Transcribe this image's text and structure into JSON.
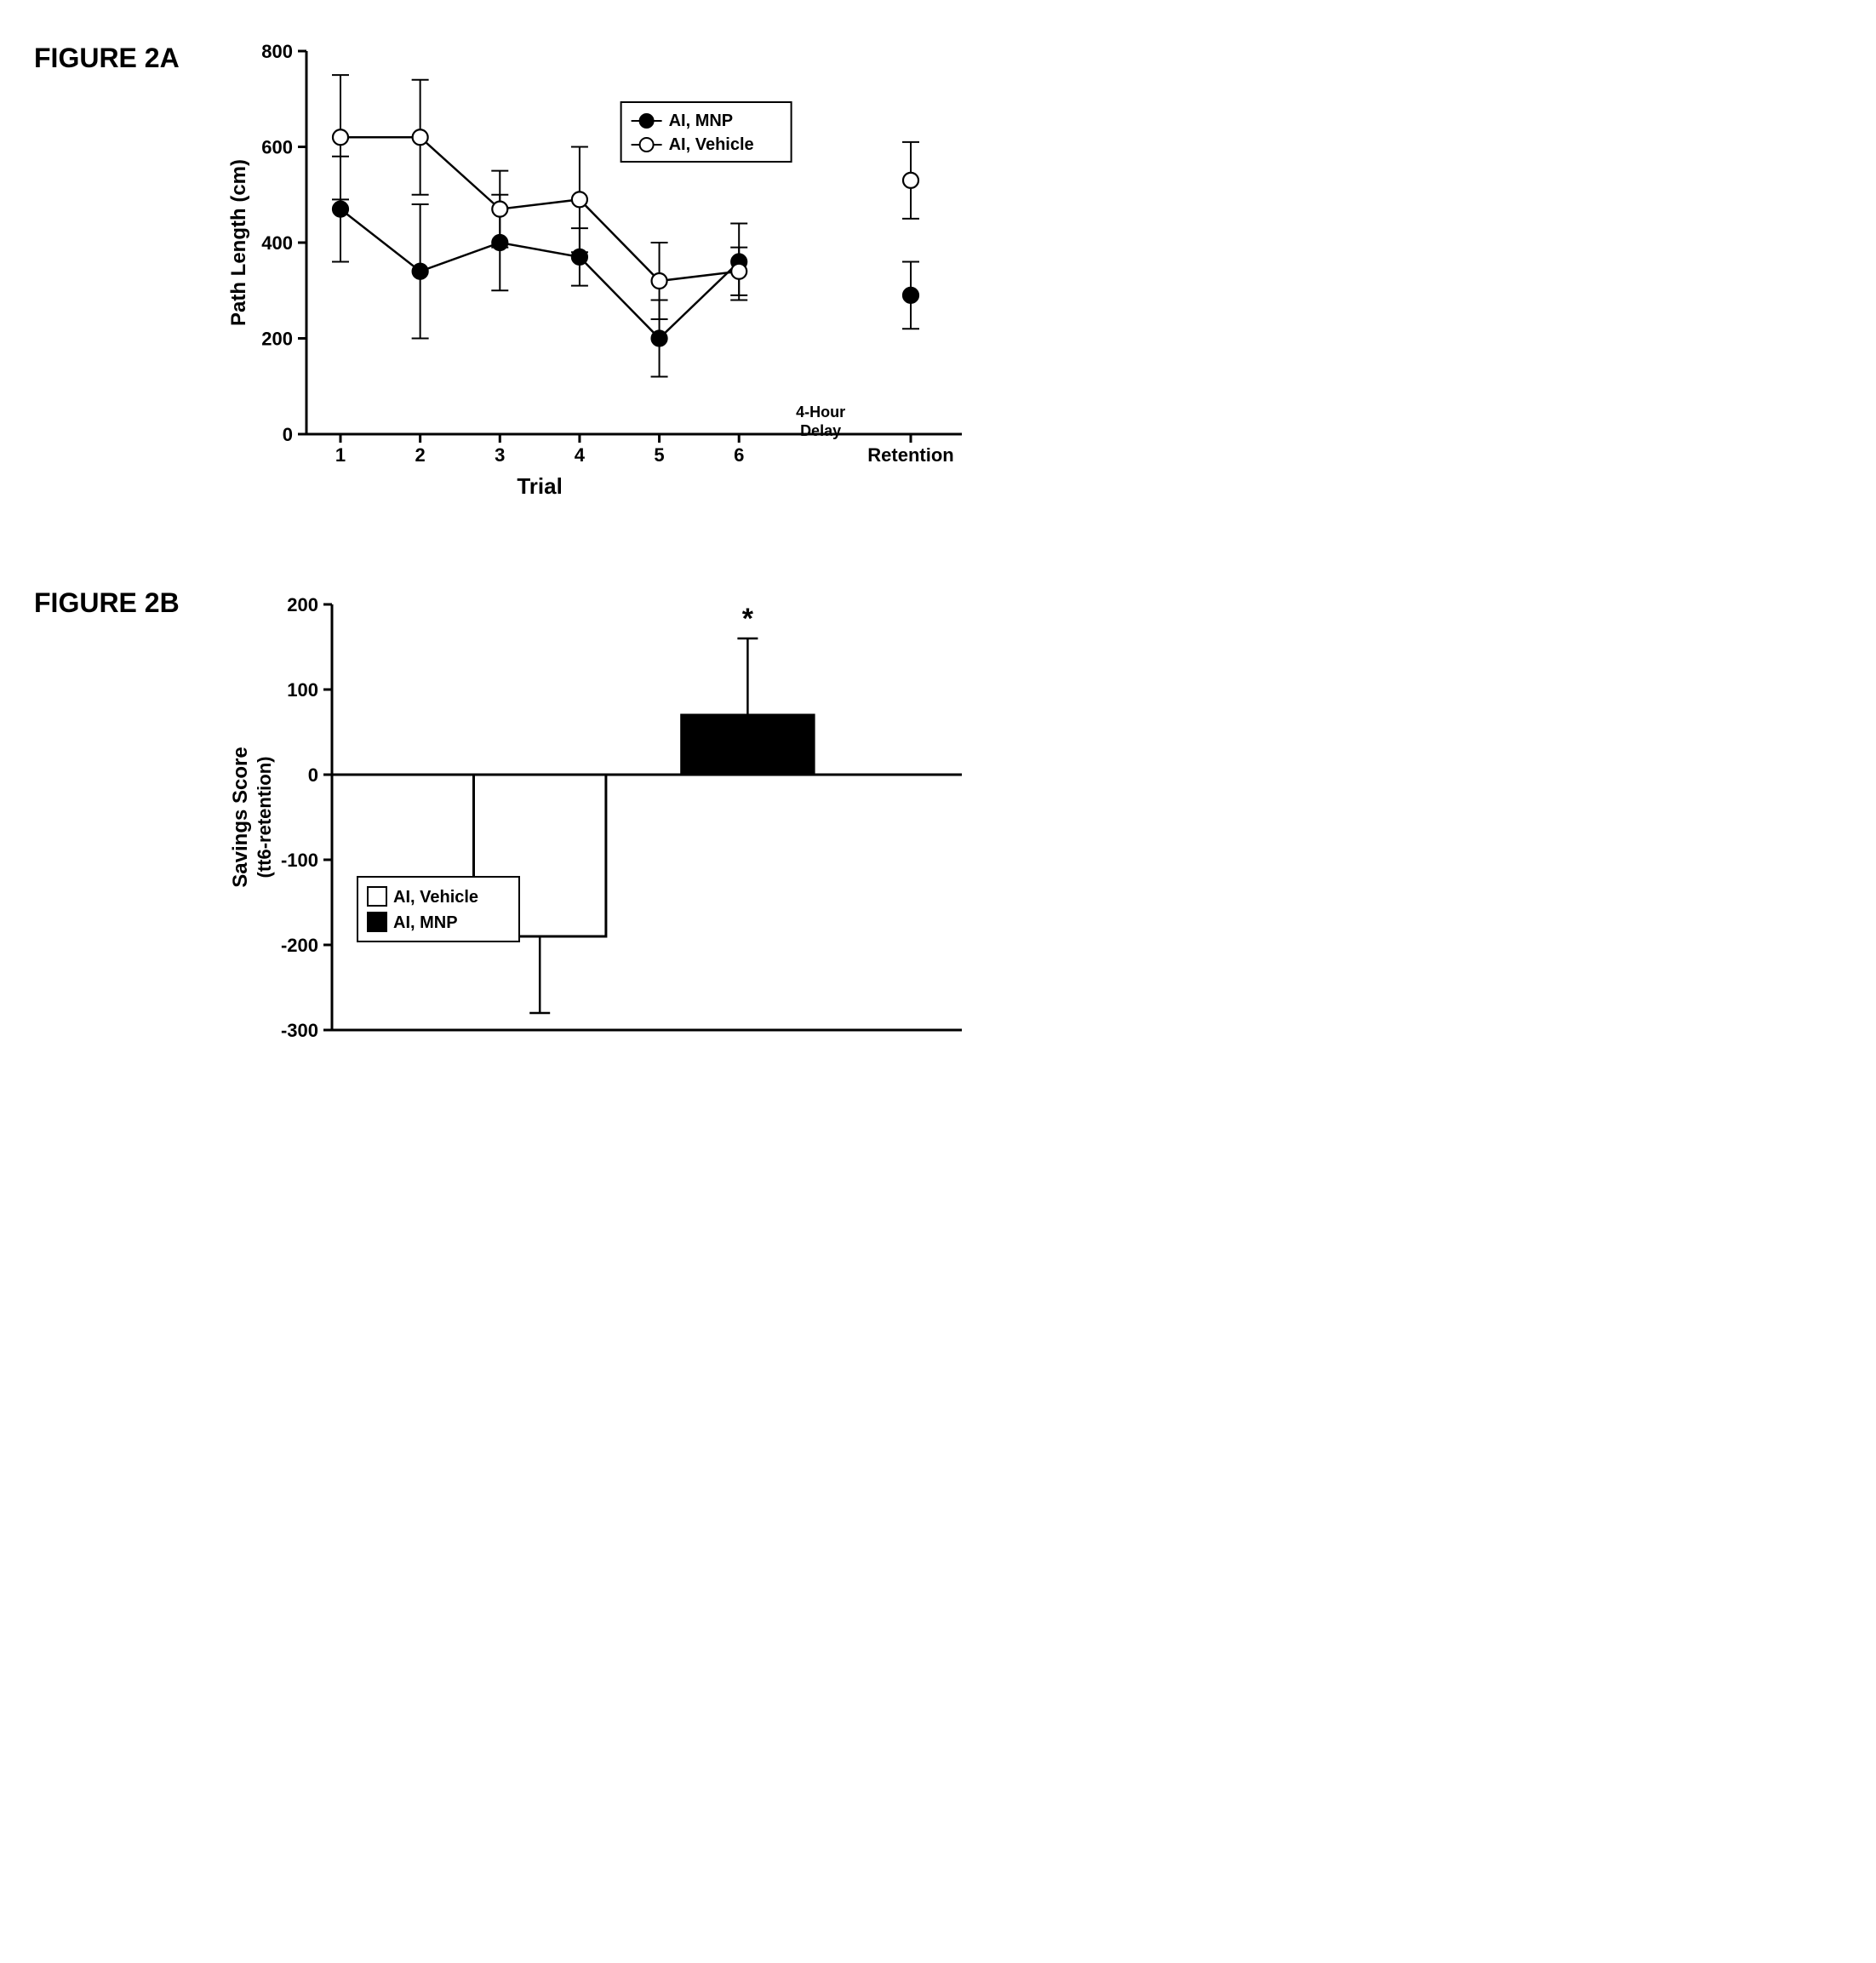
{
  "figureA": {
    "label": "FIGURE 2A",
    "type": "line",
    "ylabel": "Path Length (cm)",
    "xlabel": "Trial",
    "ylim": [
      0,
      800
    ],
    "ytick_step": 200,
    "trials": [
      "1",
      "2",
      "3",
      "4",
      "5",
      "6"
    ],
    "retention_label": "Retention",
    "delay_label": "4-Hour\nDelay",
    "series": [
      {
        "name": "AI, MNP",
        "marker": "filled",
        "values": [
          470,
          340,
          400,
          370,
          200,
          360
        ],
        "errs": [
          110,
          140,
          100,
          60,
          80,
          80
        ],
        "retention": 290,
        "retention_err": 70
      },
      {
        "name": "AI, Vehicle",
        "marker": "open",
        "values": [
          620,
          620,
          470,
          490,
          320,
          340
        ],
        "errs": [
          130,
          120,
          80,
          110,
          80,
          50
        ],
        "retention": 530,
        "retention_err": 80
      }
    ],
    "colors": {
      "line": "#000000",
      "fill_filled": "#000000",
      "fill_open": "#ffffff",
      "axis": "#000000",
      "bg": "#ffffff"
    },
    "label_fontsize": 24,
    "tick_fontsize": 22,
    "legend_fontsize": 20,
    "marker_size": 9,
    "line_width": 2.5,
    "err_cap": 10
  },
  "figureB": {
    "label": "FIGURE 2B",
    "type": "bar",
    "ylabel_line1": "Savings Score",
    "ylabel_line2": "(tt6-retention)",
    "ylim": [
      -300,
      200
    ],
    "ytick_step": 100,
    "categories": [
      "AI, Vehicle",
      "AI, MNP"
    ],
    "values": [
      -190,
      70
    ],
    "errs": [
      90,
      90
    ],
    "bar_colors": [
      "#ffffff",
      "#000000"
    ],
    "bar_border": "#000000",
    "axis_color": "#000000",
    "label_fontsize": 24,
    "tick_fontsize": 22,
    "legend_fontsize": 20,
    "bar_width": 0.42,
    "sig_marker": "*",
    "sig_on": 1
  }
}
